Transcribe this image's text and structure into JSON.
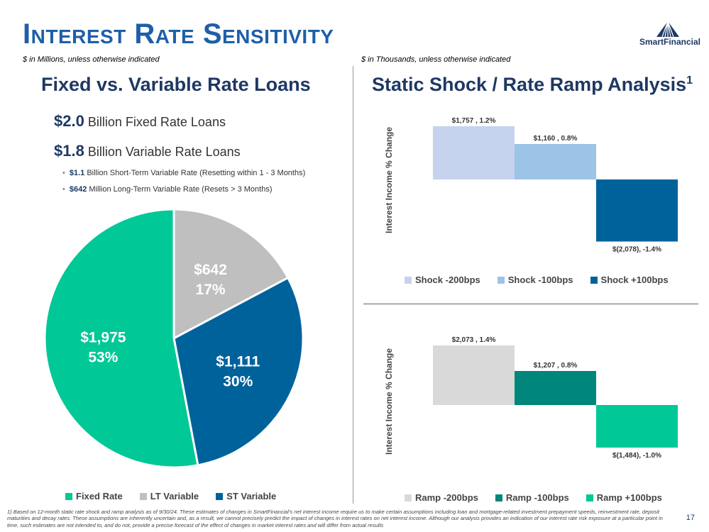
{
  "header": {
    "title": "Interest Rate Sensitivity",
    "logo_text": "SmartFinancial",
    "left_note": "$ in Millions, unless otherwise indicated",
    "right_note": "$ in Thousands, unless otherwise indicated"
  },
  "left": {
    "heading": "Fixed vs. Variable Rate Loans",
    "line1_value": "$2.0",
    "line1_text": "Billion Fixed Rate Loans",
    "line2_value": "$1.8",
    "line2_text": "Billion Variable Rate Loans",
    "sub1_value": "$1.1",
    "sub1_text": "Billion Short-Term Variable Rate (Resetting within 1 - 3 Months)",
    "sub2_value": "$642",
    "sub2_text": "Million Long-Term Variable Rate (Resets > 3 Months)"
  },
  "right": {
    "heading": "Static Shock / Rate Ramp Analysis",
    "heading_sup": "1"
  },
  "chart_data": [
    {
      "type": "pie",
      "title": "Fixed vs. Variable Rate Loans",
      "slices": [
        {
          "name": "Fixed Rate",
          "value": 1975,
          "label": "$1,975",
          "pct": "53%",
          "color": "#00c896"
        },
        {
          "name": "LT Variable",
          "value": 642,
          "label": "$642",
          "pct": "17%",
          "color": "#bfbfbf"
        },
        {
          "name": "ST Variable",
          "value": 1111,
          "label": "$1,111",
          "pct": "30%",
          "color": "#00629b"
        }
      ]
    },
    {
      "type": "bar",
      "title": "Static Shock",
      "ylabel": "Interest Income % Change",
      "ylim": [
        -1.5,
        1.5
      ],
      "bars": [
        {
          "name": "Shock -200bps",
          "value": 1.2,
          "label": "$1,757 , 1.2%",
          "color": "#c5d3ee"
        },
        {
          "name": "Shock -100bps",
          "value": 0.8,
          "label": "$1,160 , 0.8%",
          "color": "#9dc3e6"
        },
        {
          "name": "Shock +100bps",
          "value": -1.4,
          "label": "$(2,078), -1.4%",
          "color": "#00629b"
        }
      ]
    },
    {
      "type": "bar",
      "title": "Rate Ramp",
      "ylabel": "Interest Income % Change",
      "ylim": [
        -1.5,
        1.5
      ],
      "bars": [
        {
          "name": "Ramp -200bps",
          "value": 1.4,
          "label": "$2,073 , 1.4%",
          "color": "#d9d9d9"
        },
        {
          "name": "Ramp -100bps",
          "value": 0.8,
          "label": "$1,207 , 0.8%",
          "color": "#00867a"
        },
        {
          "name": "Ramp +100bps",
          "value": -1.0,
          "label": "$(1,484), -1.0%",
          "color": "#00c896"
        }
      ]
    }
  ],
  "footnote": "1)  Based on 12-month static rate shock and ramp analysis as of 9/30/24. These estimates of changes in SmartFinancial’s net interest income require us to make certain assumptions including loan and mortgage-related investment prepayment speeds, reinvestment rate, deposit maturities and decay rates. These assumptions are inherently uncertain and, as a result, we cannot precisely predict the impact of changes in interest rates on net interest income. Although our analysis provides an indication of our interest rate risk exposure at a particular point in time, such estimates are not intended to, and do not, provide a precise forecast of the effect of changes in market interest rates and will differ from actual results",
  "page_number": "17"
}
